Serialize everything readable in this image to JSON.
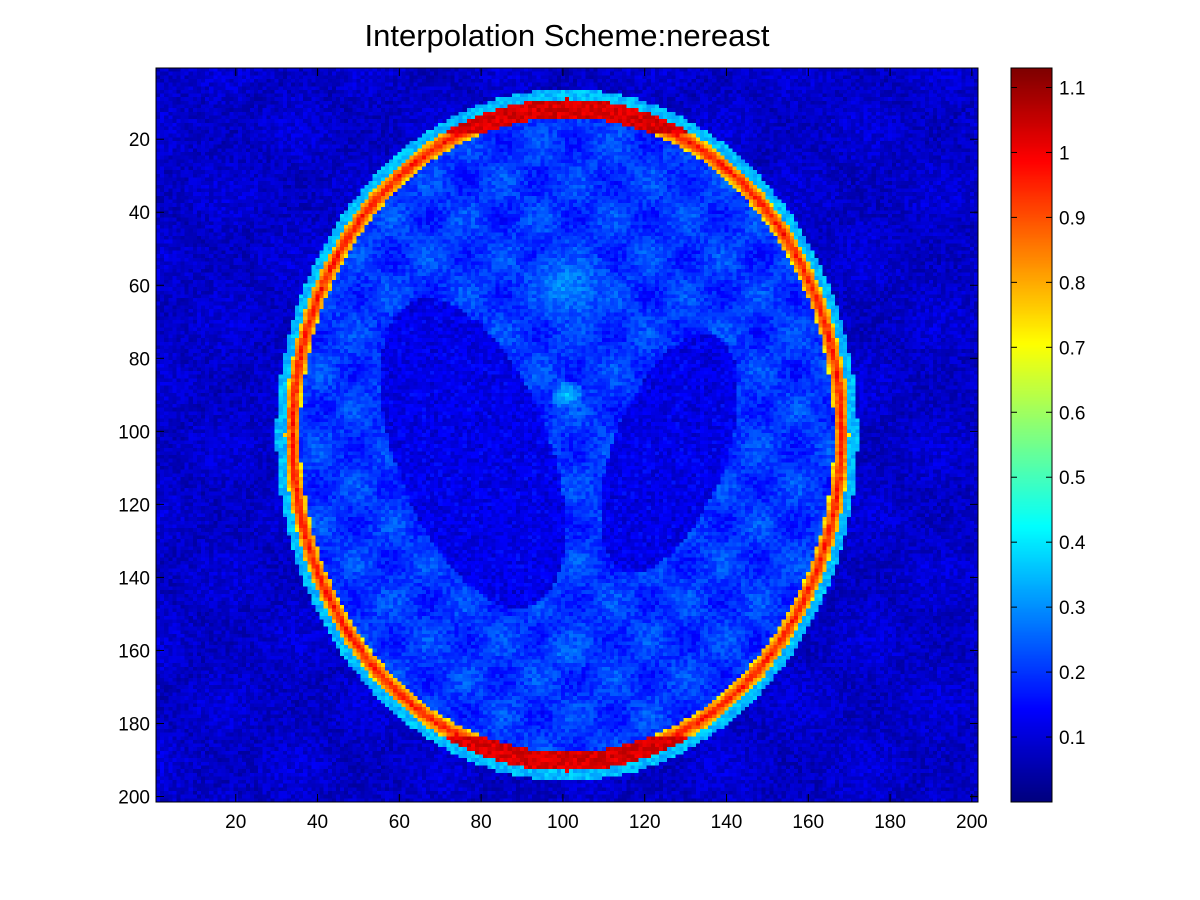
{
  "chart_data": {
    "type": "heatmap",
    "title": "Interpolation Scheme:nereast",
    "xlabel": "",
    "ylabel": "",
    "xlim": [
      0.5,
      201.5
    ],
    "ylim": [
      0.5,
      201.5
    ],
    "y_reversed": true,
    "x_ticks": [
      20,
      40,
      60,
      80,
      100,
      120,
      140,
      160,
      180,
      200
    ],
    "y_ticks": [
      20,
      40,
      60,
      80,
      100,
      120,
      140,
      160,
      180,
      200
    ],
    "colormap": "jet",
    "color_range": [
      0.0,
      1.13
    ],
    "colorbar_ticks": [
      0.1,
      0.2,
      0.3,
      0.4,
      0.5,
      0.6,
      0.7,
      0.8,
      0.9,
      1,
      1.1
    ],
    "background_level": 0.07,
    "skull_shell": {
      "center": [
        101,
        101
      ],
      "semi_axes": [
        69,
        92
      ],
      "thickness": 5,
      "level": 0.98
    },
    "brain_tissue_level": 0.2,
    "ventricles": [
      {
        "center": [
          78,
          106
        ],
        "semi_axes": [
          19,
          44
        ],
        "rotation_deg": -18,
        "level": 0.1
      },
      {
        "center": [
          126,
          106
        ],
        "semi_axes": [
          14,
          34
        ],
        "rotation_deg": 18,
        "level": 0.1
      }
    ],
    "bright_spots": [
      {
        "center": [
          101,
          60
        ],
        "radius": 11,
        "level": 0.3
      },
      {
        "center": [
          101,
          90
        ],
        "radius": 4,
        "level": 0.35
      },
      {
        "center": [
          101,
          160
        ],
        "radius": 6,
        "level": 0.28
      }
    ]
  }
}
